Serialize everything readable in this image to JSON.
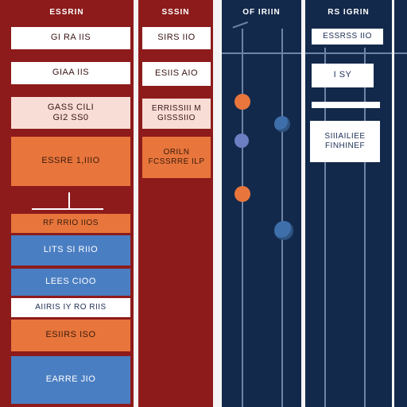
{
  "columns": {
    "c1": {
      "header": "ESSRIN",
      "tiles": [
        "GI RA IIS",
        "GIAA IIS",
        "GASS CILI\nGI2 SS0",
        "ESSRE 1,IIIO",
        "RF RRIO IIOS",
        "LITS SI RIIO",
        "LEES CIOO",
        "AIIRIS IY RO RIIS",
        "ESIIRS ISO",
        "EARRE JIO"
      ]
    },
    "c2": {
      "header": "SSSIN",
      "tiles": [
        "SIRS IIO",
        "ESIIS AIO",
        "ERRISSIII M\nGISSSIIO",
        "ORILN\nFCSSRRE ILP"
      ]
    },
    "c3": {
      "header": "OF IRIIN"
    },
    "c4": {
      "header": "RS IGRIN",
      "tiles": [
        "ESSRSS IIO",
        "I SY",
        "SIIIAILIEE\nFINHINEF"
      ]
    }
  },
  "colors": {
    "maroon": "#8d1b1b",
    "navy": "#13294b",
    "orange": "#e8763c",
    "blue": "#4a7ec2"
  }
}
